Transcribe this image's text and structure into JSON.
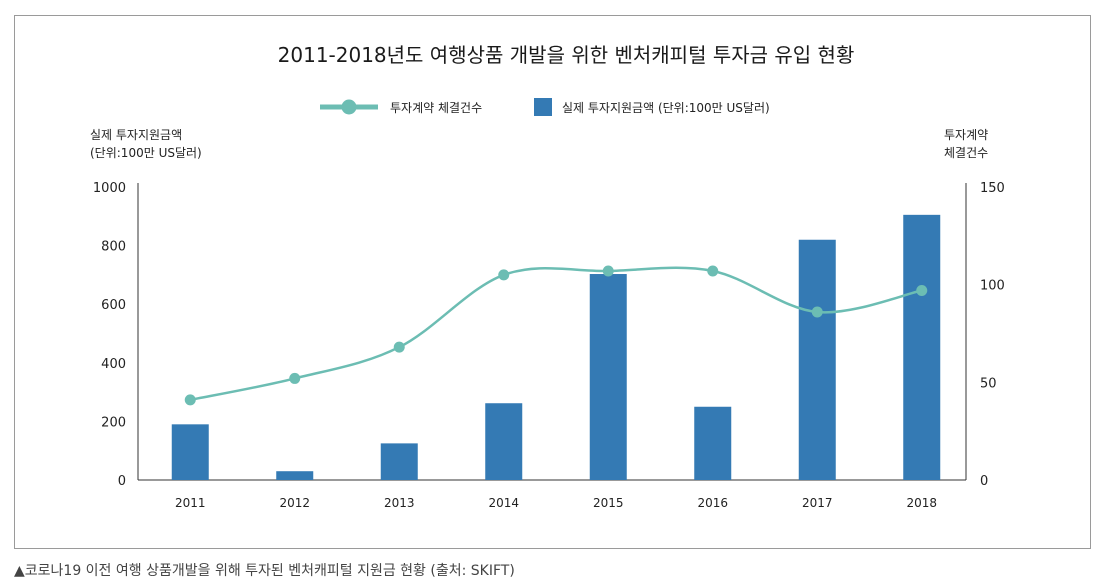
{
  "caption": "▲코로나19 이전 여행 상품개발을 위해 투자된 벤처캐피털 지원금 현황 (출처: SKIFT)",
  "colors": {
    "bar": "#347ab4",
    "line": "#6cbdb3",
    "axis": "#333333",
    "frame": "#9a9a9a"
  },
  "chart_data": {
    "type": "bar",
    "title": "2011-2018년도 여행상품 개발을 위한 벤처캐피털 투자금 유입 현황",
    "categories": [
      "2011",
      "2012",
      "2013",
      "2014",
      "2015",
      "2016",
      "2017",
      "2018"
    ],
    "legend": {
      "line_label": "투자계약 체결건수",
      "bar_label": "실제 투자지원금액 (단위:100만 US달러)",
      "placement": "top-center"
    },
    "y_left": {
      "label_line1": "실제 투자지원금액",
      "label_line2": "(단위:100만 US달러)",
      "ylim": [
        0,
        1000
      ],
      "ticks": [
        "0",
        "200",
        "400",
        "600",
        "800",
        "1000"
      ]
    },
    "y_right": {
      "label_line1": "투자계약",
      "label_line2": "체결건수",
      "ylim": [
        0,
        150
      ],
      "ticks": [
        "0",
        "50",
        "100",
        "150"
      ]
    },
    "series": [
      {
        "type": "bar",
        "axis": "left",
        "values": [
          190,
          30,
          125,
          262,
          703,
          250,
          820,
          905
        ]
      },
      {
        "type": "line",
        "axis": "right",
        "values": [
          41,
          52,
          68,
          105,
          107,
          107,
          86,
          97
        ]
      }
    ],
    "grid": false
  }
}
